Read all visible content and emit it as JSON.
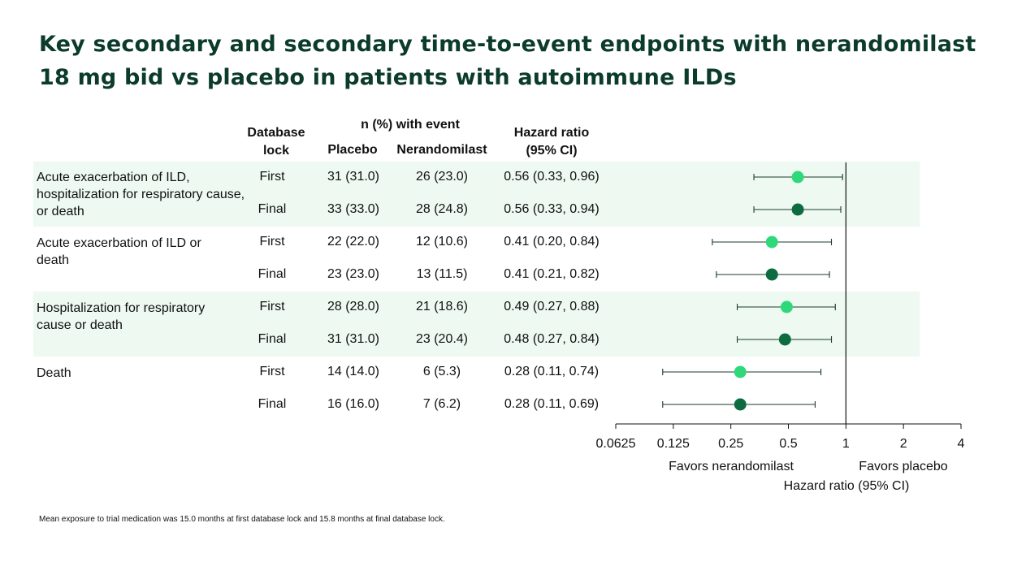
{
  "title_lines": [
    "Key secondary and secondary time-to-event endpoints with nerandomilast",
    "18 mg bid vs placebo in patients with autoimmune ILDs"
  ],
  "headers": {
    "database_lock_1": "Database",
    "database_lock_2": "lock",
    "n_event": "n (%) with event",
    "placebo": "Placebo",
    "nerandomilast": "Nerandomilast",
    "hr_1": "Hazard ratio",
    "hr_2": "(95% CI)"
  },
  "rows": [
    {
      "lock": "First",
      "placebo": "31 (31.0)",
      "nerandomilast": "26 (23.0)",
      "hr_text": "0.56 (0.33, 0.96)"
    },
    {
      "lock": "Final",
      "placebo": "33 (33.0)",
      "nerandomilast": "28 (24.8)",
      "hr_text": "0.56 (0.33, 0.94)"
    },
    {
      "lock": "First",
      "placebo": "22 (22.0)",
      "nerandomilast": "12 (10.6)",
      "hr_text": "0.41 (0.20, 0.84)"
    },
    {
      "lock": "Final",
      "placebo": "23 (23.0)",
      "nerandomilast": "13 (11.5)",
      "hr_text": "0.41 (0.21, 0.82)"
    },
    {
      "lock": "First",
      "placebo": "28 (28.0)",
      "nerandomilast": "21 (18.6)",
      "hr_text": "0.49 (0.27, 0.88)"
    },
    {
      "lock": "Final",
      "placebo": "31 (31.0)",
      "nerandomilast": "23 (20.4)",
      "hr_text": "0.48 (0.27, 0.84)"
    },
    {
      "lock": "First",
      "placebo": "14 (14.0)",
      "nerandomilast": "6 (5.3)",
      "hr_text": "0.28 (0.11, 0.74)"
    },
    {
      "lock": "Final",
      "placebo": "16 (16.0)",
      "nerandomilast": "7 (6.2)",
      "hr_text": "0.28 (0.11, 0.69)"
    }
  ],
  "outcomes": [
    "Acute exacerbation of ILD, hospitalization for respiratory cause, or death",
    "Acute exacerbation of ILD or death",
    "Hospitalization for respiratory cause or death",
    "Death"
  ],
  "footnote": "Mean exposure to trial medication was 15.0 months at first database lock and 15.8 months at final database lock.",
  "colors": {
    "title": "#0b3b2a",
    "band": "#edf9f1",
    "first_marker": "#2fd97a",
    "final_marker": "#0d6b3f",
    "ci_line": "#1c3a2b"
  },
  "chart_data": {
    "type": "forest",
    "x_scale": "log2",
    "x_ticks": [
      "0.0625",
      "0.125",
      "0.25",
      "0.5",
      "1",
      "2",
      "4"
    ],
    "xlim": [
      0.0625,
      4
    ],
    "reference_line": 1,
    "xlabel": "Hazard ratio (95% CI)",
    "left_annotation": "Favors nerandomilast",
    "right_annotation": "Favors placebo",
    "series": [
      {
        "name": "First",
        "color": "#2fd97a"
      },
      {
        "name": "Final",
        "color": "#0d6b3f"
      }
    ],
    "points": [
      {
        "hr": 0.56,
        "lo": 0.33,
        "hi": 0.96,
        "lock": "First"
      },
      {
        "hr": 0.56,
        "lo": 0.33,
        "hi": 0.94,
        "lock": "Final"
      },
      {
        "hr": 0.41,
        "lo": 0.2,
        "hi": 0.84,
        "lock": "First"
      },
      {
        "hr": 0.41,
        "lo": 0.21,
        "hi": 0.82,
        "lock": "Final"
      },
      {
        "hr": 0.49,
        "lo": 0.27,
        "hi": 0.88,
        "lock": "First"
      },
      {
        "hr": 0.48,
        "lo": 0.27,
        "hi": 0.84,
        "lock": "Final"
      },
      {
        "hr": 0.28,
        "lo": 0.11,
        "hi": 0.74,
        "lock": "First"
      },
      {
        "hr": 0.28,
        "lo": 0.11,
        "hi": 0.69,
        "lock": "Final"
      }
    ]
  }
}
